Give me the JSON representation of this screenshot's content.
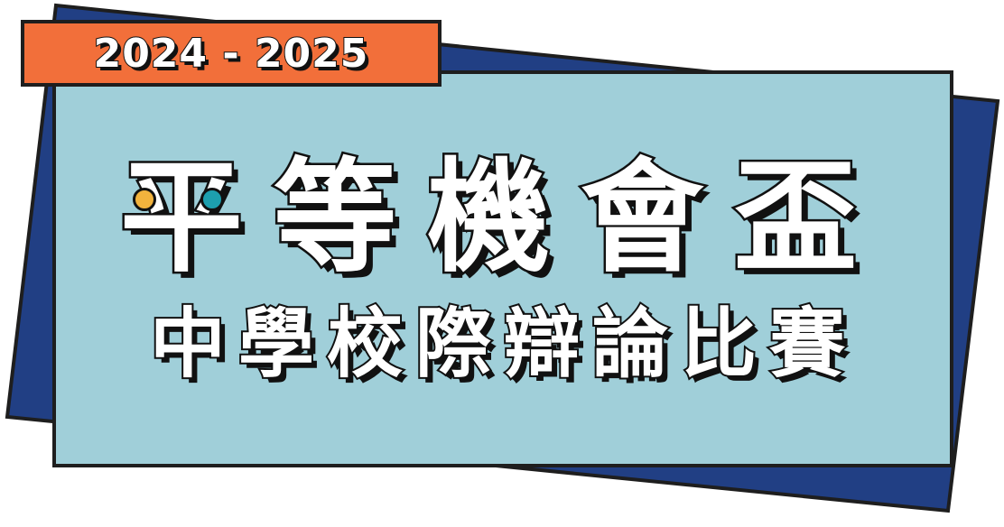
{
  "badge": {
    "year_range": "2024 - 2025"
  },
  "title": {
    "main": "平等機會盃",
    "subtitle": "中學校際辯論比賽"
  },
  "colors": {
    "background": "#ffffff",
    "back_panel": "#213f84",
    "front_panel": "#a0cfd9",
    "year_tag": "#f26f3a",
    "outline": "#111111",
    "dot_left": "#f2b33d",
    "dot_right": "#1d9fae"
  },
  "decorations": {
    "left_dot_icon": "yellow-dot-icon",
    "right_dot_icon": "teal-dot-icon"
  }
}
